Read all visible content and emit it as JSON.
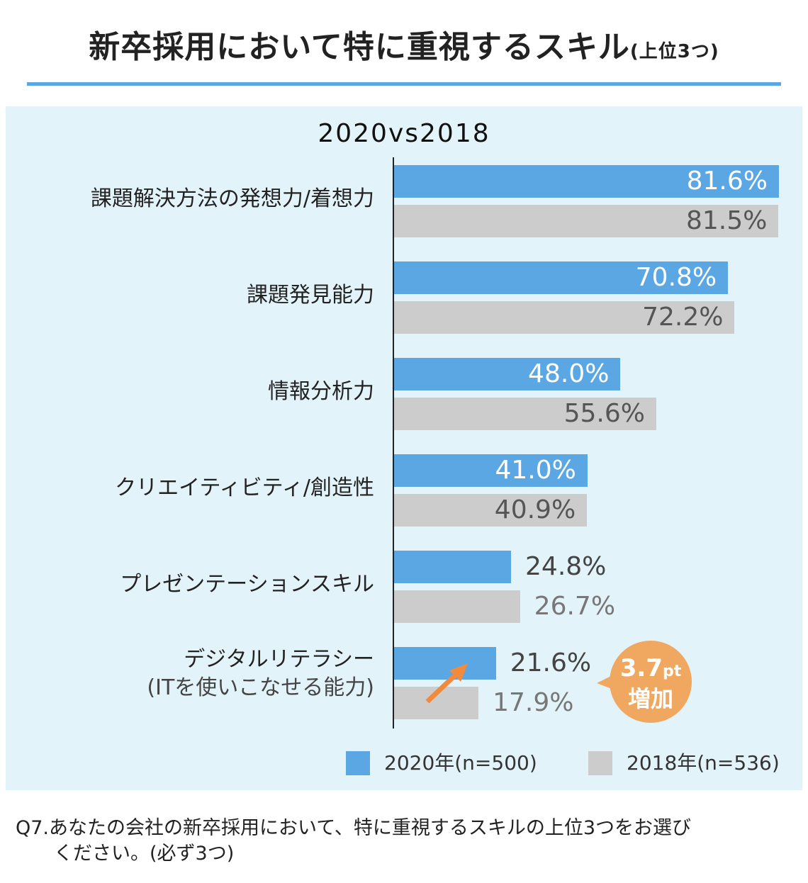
{
  "title": {
    "main": "新卒採用において特に重視するスキル",
    "suffix": "(上位3つ)"
  },
  "chart_data": {
    "type": "bar",
    "orientation": "horizontal",
    "title": "2020vs2018",
    "categories": [
      "課題解決方法の発想力/着想力",
      "課題発見能力",
      "情報分析力",
      "クリエイティビティ/創造性",
      "プレゼンテーションスキル",
      "デジタルリテラシー"
    ],
    "category_notes": [
      "",
      "",
      "",
      "",
      "",
      "(ITを使いこなせる能力)"
    ],
    "series": [
      {
        "name": "2020年(n=500)",
        "color": "#5ba7e3",
        "values": [
          81.6,
          70.8,
          48.0,
          41.0,
          24.8,
          21.6
        ],
        "labels": [
          "81.6%",
          "70.8%",
          "48.0%",
          "41.0%",
          "24.8%",
          "21.6%"
        ]
      },
      {
        "name": "2018年(n=536)",
        "color": "#cccccc",
        "values": [
          81.5,
          72.2,
          55.6,
          40.9,
          26.7,
          17.9
        ],
        "labels": [
          "81.5%",
          "72.2%",
          "55.6%",
          "40.9%",
          "26.7%",
          "17.9%"
        ]
      }
    ],
    "xlim": [
      0,
      100
    ],
    "legend": "bottom-right",
    "annotation": {
      "value": "3.7",
      "unit": "pt",
      "text": "増加"
    }
  },
  "footer": {
    "line1": "Q7.あなたの会社の新卒採用において、特に重視するスキルの上位3つをお選び",
    "line2": "ください。(必ず3つ)"
  }
}
